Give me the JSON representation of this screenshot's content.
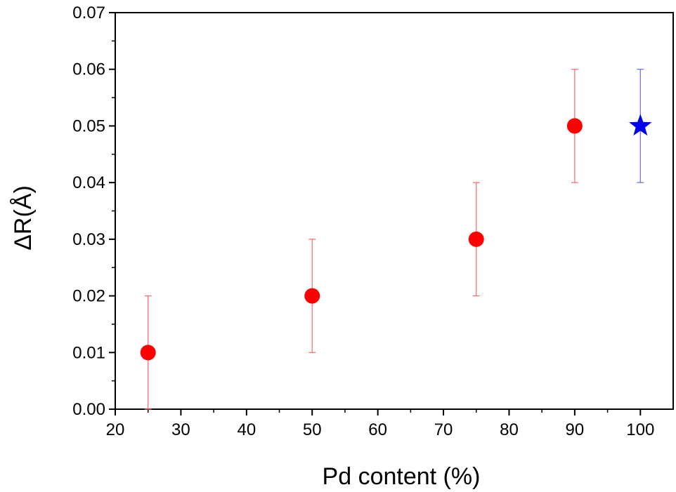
{
  "chart_data": {
    "type": "scatter",
    "xlabel": "Pd content (%)",
    "ylabel": "ΔR(Å)",
    "xlim": [
      20,
      105
    ],
    "ylim": [
      0,
      0.07
    ],
    "xticks": [
      "20",
      "30",
      "40",
      "50",
      "60",
      "70",
      "80",
      "90",
      "100"
    ],
    "yticks": [
      "0.00",
      "0.01",
      "0.02",
      "0.03",
      "0.04",
      "0.05",
      "0.06",
      "0.07"
    ],
    "grid": false,
    "series": [
      {
        "marker": "circle",
        "color": "#ff0000",
        "errorbar_color": "#ff6666",
        "points": [
          {
            "x": 25,
            "y": 0.01,
            "err": 0.01
          },
          {
            "x": 50,
            "y": 0.02,
            "err": 0.01
          },
          {
            "x": 75,
            "y": 0.03,
            "err": 0.01
          },
          {
            "x": 90,
            "y": 0.05,
            "err": 0.01
          }
        ]
      },
      {
        "marker": "star",
        "color": "#0000ee",
        "errorbar_color": "#6a6aee",
        "points": [
          {
            "x": 100,
            "y": 0.05,
            "err": 0.01
          }
        ]
      }
    ]
  }
}
